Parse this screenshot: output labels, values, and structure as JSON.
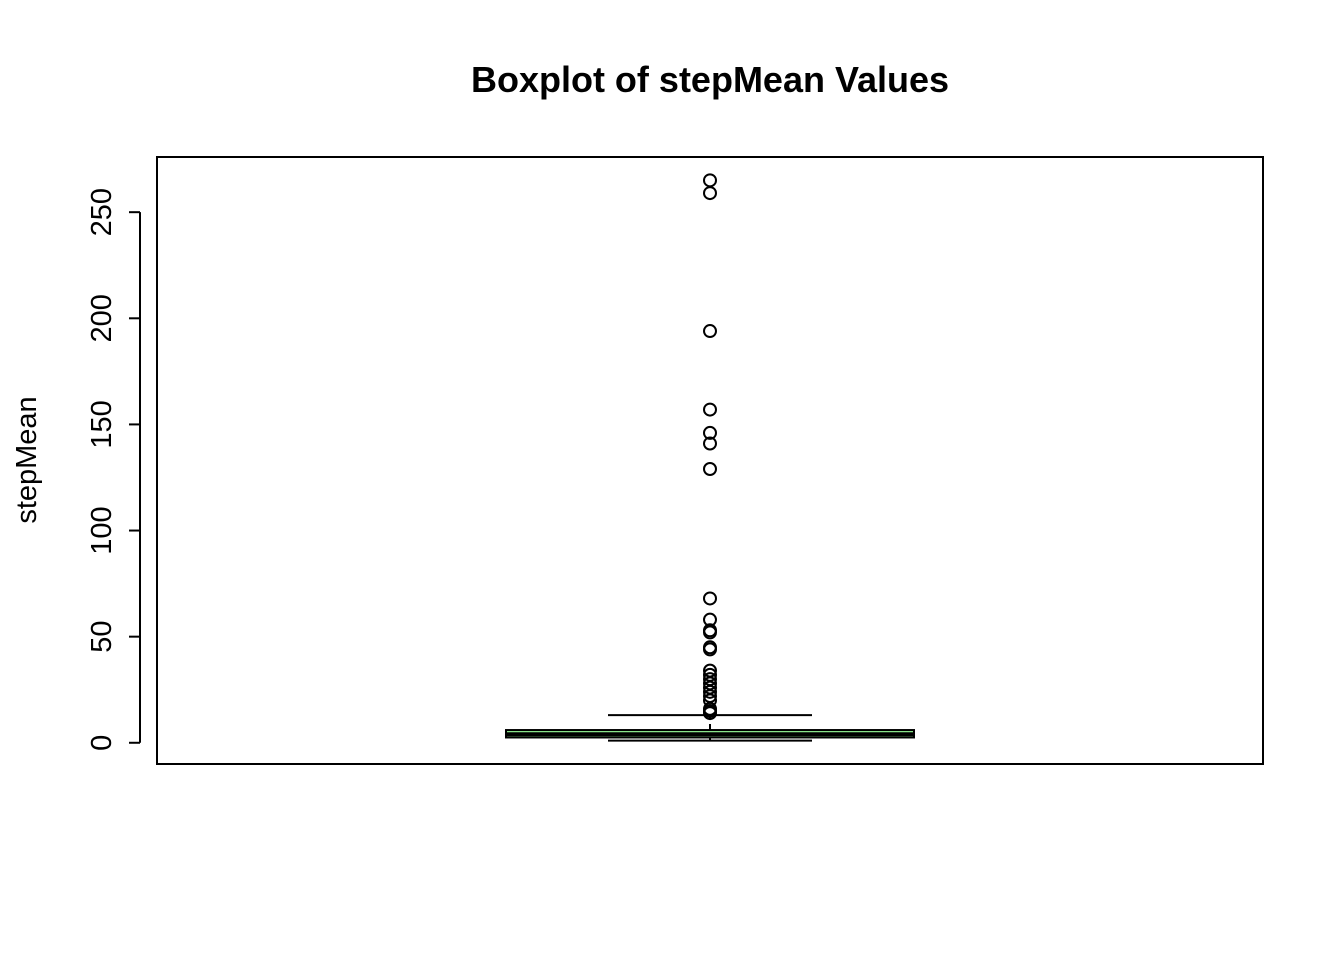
{
  "chart_data": {
    "type": "boxplot",
    "title": "Boxplot of stepMean Values",
    "xlabel": "",
    "ylabel": "stepMean",
    "ylim": [
      -10,
      276
    ],
    "y_ticks": [
      0,
      50,
      100,
      150,
      200,
      250
    ],
    "grid": false,
    "box": {
      "whisker_low": 1,
      "q1": 2.5,
      "median": 4,
      "q3": 6,
      "whisker_high": 13,
      "fill_color": "#90ee90"
    },
    "outliers": [
      14,
      15,
      16,
      20,
      22,
      24,
      26,
      28,
      30,
      32,
      34,
      44,
      45,
      52,
      53,
      58,
      68,
      129,
      141,
      146,
      157,
      194,
      259,
      265
    ]
  }
}
